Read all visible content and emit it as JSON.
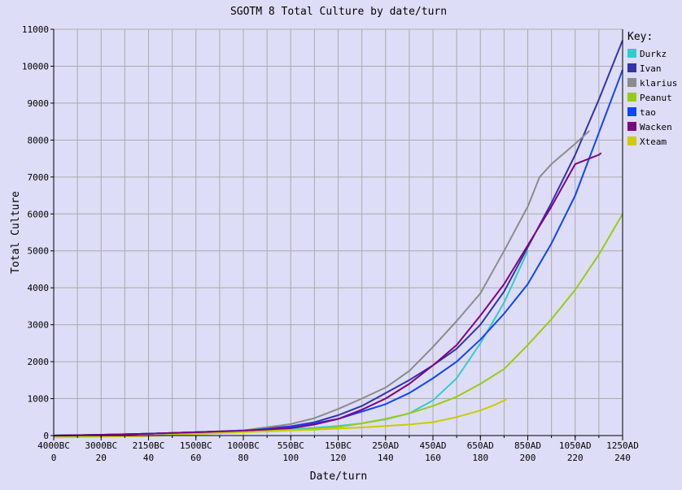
{
  "chart_data": {
    "type": "line",
    "title": "SGOTM 8 Total Culture by date/turn",
    "xlabel": "Date/turn",
    "ylabel": "Total Culture",
    "xlim": [
      0,
      240
    ],
    "ylim": [
      0,
      11000
    ],
    "y_ticks": [
      0,
      1000,
      2000,
      3000,
      4000,
      5000,
      6000,
      7000,
      8000,
      9000,
      10000,
      11000
    ],
    "x_major_ticks": [
      {
        "turn": 0,
        "date": "4000BC"
      },
      {
        "turn": 20,
        "date": "3000BC"
      },
      {
        "turn": 40,
        "date": "2150BC"
      },
      {
        "turn": 60,
        "date": "1500BC"
      },
      {
        "turn": 80,
        "date": "1000BC"
      },
      {
        "turn": 100,
        "date": "550BC"
      },
      {
        "turn": 120,
        "date": "150BC"
      },
      {
        "turn": 140,
        "date": "250AD"
      },
      {
        "turn": 160,
        "date": "450AD"
      },
      {
        "turn": 180,
        "date": "650AD"
      },
      {
        "turn": 200,
        "date": "850AD"
      },
      {
        "turn": 220,
        "date": "1050AD"
      },
      {
        "turn": 240,
        "date": "1250AD"
      }
    ],
    "x_minor_step": 10,
    "grid": true,
    "legend": {
      "title": "Key:",
      "placement": "right"
    },
    "series": [
      {
        "name": "Durkz",
        "color": "#33cccc",
        "x": [
          0,
          20,
          40,
          60,
          80,
          100,
          110,
          120,
          130,
          140,
          150,
          160,
          170,
          180,
          190,
          200
        ],
        "y": [
          0,
          20,
          50,
          90,
          130,
          180,
          210,
          260,
          330,
          440,
          600,
          950,
          1550,
          2500,
          3600,
          5000
        ]
      },
      {
        "name": "Ivan",
        "color": "#3333aa",
        "x": [
          0,
          20,
          40,
          60,
          80,
          100,
          110,
          120,
          130,
          140,
          150,
          160,
          170,
          180,
          190,
          200,
          210,
          220,
          230,
          240
        ],
        "y": [
          0,
          20,
          50,
          90,
          140,
          250,
          360,
          550,
          800,
          1150,
          1500,
          1900,
          2350,
          3000,
          3900,
          5100,
          6300,
          7600,
          9100,
          10700
        ]
      },
      {
        "name": "klarius",
        "color": "#8c8c8c",
        "x": [
          0,
          20,
          40,
          60,
          80,
          100,
          110,
          120,
          130,
          140,
          150,
          160,
          170,
          180,
          190,
          200,
          205,
          210,
          220,
          226
        ],
        "y": [
          0,
          20,
          50,
          90,
          140,
          310,
          470,
          720,
          1000,
          1300,
          1750,
          2400,
          3100,
          3850,
          5000,
          6200,
          7000,
          7350,
          7900,
          8250
        ]
      },
      {
        "name": "Peanut",
        "color": "#99cc11",
        "x": [
          0,
          20,
          40,
          60,
          80,
          100,
          110,
          120,
          130,
          140,
          150,
          160,
          170,
          180,
          190,
          200,
          210,
          220,
          230,
          240
        ],
        "y": [
          0,
          20,
          50,
          80,
          110,
          150,
          180,
          230,
          330,
          450,
          600,
          800,
          1050,
          1400,
          1800,
          2450,
          3150,
          3950,
          4900,
          6000
        ]
      },
      {
        "name": "tao",
        "color": "#1144ff",
        "x": [
          0,
          20,
          40,
          60,
          80,
          100,
          110,
          120,
          130,
          140,
          150,
          160,
          170,
          180,
          190,
          200,
          210,
          220,
          230,
          240
        ],
        "y": [
          0,
          20,
          50,
          90,
          130,
          230,
          330,
          450,
          650,
          850,
          1150,
          1550,
          2000,
          2600,
          3300,
          4100,
          5200,
          6500,
          8200,
          9900
        ]
      },
      {
        "name": "Wacken",
        "color": "#800080",
        "x": [
          0,
          20,
          40,
          60,
          80,
          100,
          110,
          120,
          130,
          140,
          150,
          160,
          170,
          180,
          190,
          200,
          210,
          220,
          230,
          231
        ],
        "y": [
          0,
          20,
          50,
          90,
          130,
          200,
          300,
          450,
          700,
          1000,
          1400,
          1900,
          2450,
          3250,
          4100,
          5150,
          6200,
          7350,
          7600,
          7650
        ]
      },
      {
        "name": "Xteam",
        "color": "#cccc00",
        "x": [
          0,
          20,
          40,
          60,
          80,
          100,
          110,
          120,
          130,
          140,
          150,
          160,
          170,
          180,
          186,
          191
        ],
        "y": [
          -50,
          -30,
          -10,
          40,
          90,
          140,
          160,
          190,
          220,
          260,
          300,
          360,
          500,
          680,
          830,
          980
        ]
      }
    ]
  }
}
